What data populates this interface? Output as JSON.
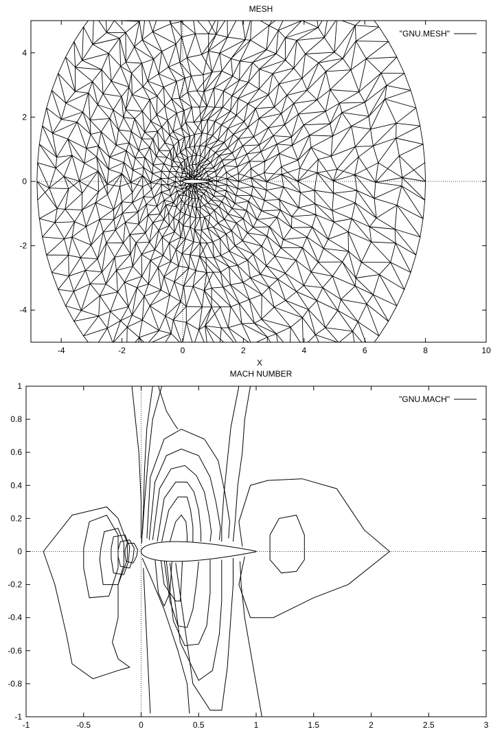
{
  "chart_data": [
    {
      "type": "line",
      "title": "MESH",
      "xlabel": "X",
      "ylabel": "",
      "xlim": [
        -5,
        10
      ],
      "ylim": [
        -5,
        5
      ],
      "xticks": [
        -4,
        -2,
        0,
        2,
        4,
        6,
        8,
        10
      ],
      "yticks": [
        -4,
        -2,
        0,
        2,
        4
      ],
      "zero_axes": true,
      "grid": false,
      "legend_position": "top-right",
      "series": [
        {
          "name": "\"GNU.MESH\"",
          "kind": "triangular-mesh",
          "outer_boundary": {
            "center": [
              1.6,
              0
            ],
            "radius_x": 6.4,
            "radius_y": 7.4
          },
          "airfoil": {
            "leading_edge": [
              0,
              0
            ],
            "trailing_edge": [
              1,
              0
            ],
            "thickness": 0.12
          },
          "refinement_center": [
            0.3,
            0
          ]
        }
      ]
    },
    {
      "type": "line",
      "title": "MACH NUMBER",
      "xlabel": "",
      "ylabel": "",
      "xlim": [
        -1,
        3
      ],
      "ylim": [
        -1,
        1
      ],
      "xticks": [
        -1,
        -0.5,
        0,
        0.5,
        1,
        1.5,
        2,
        2.5,
        3
      ],
      "yticks": [
        -1,
        -0.8,
        -0.6,
        -0.4,
        -0.2,
        0,
        0.2,
        0.4,
        0.6,
        0.8,
        1
      ],
      "zero_axes": true,
      "grid": false,
      "legend_position": "top-right",
      "series": [
        {
          "name": "\"GNU.MACH\"",
          "kind": "contours",
          "airfoil": {
            "leading_edge": [
              0,
              0
            ],
            "trailing_edge": [
              1,
              0
            ],
            "thickness": 0.12
          },
          "contours": [
            [
              [
                -0.85,
                0
              ],
              [
                -0.6,
                0.22
              ],
              [
                -0.3,
                0.27
              ],
              [
                -0.2,
                0.2
              ],
              [
                -0.12,
                0.05
              ],
              [
                -0.12,
                -0.05
              ],
              [
                -0.2,
                -0.2
              ],
              [
                -0.2,
                -0.4
              ],
              [
                -0.25,
                -0.55
              ],
              [
                -0.2,
                -0.65
              ],
              [
                -0.1,
                -0.7
              ],
              [
                -0.2,
                -0.72
              ],
              [
                -0.42,
                -0.77
              ],
              [
                -0.6,
                -0.68
              ],
              [
                -0.65,
                -0.5
              ],
              [
                -0.75,
                -0.2
              ],
              [
                -0.85,
                0
              ]
            ],
            [
              [
                -0.5,
                0.02
              ],
              [
                -0.45,
                0.18
              ],
              [
                -0.3,
                0.22
              ],
              [
                -0.2,
                0.1
              ],
              [
                -0.2,
                -0.1
              ],
              [
                -0.28,
                -0.27
              ],
              [
                -0.45,
                -0.28
              ],
              [
                -0.5,
                -0.1
              ],
              [
                -0.5,
                0.02
              ]
            ],
            [
              [
                -0.35,
                0.02
              ],
              [
                -0.32,
                0.12
              ],
              [
                -0.2,
                0.14
              ],
              [
                -0.15,
                0.05
              ],
              [
                -0.15,
                -0.08
              ],
              [
                -0.2,
                -0.2
              ],
              [
                -0.33,
                -0.2
              ],
              [
                -0.36,
                -0.05
              ],
              [
                -0.35,
                0.02
              ]
            ],
            [
              [
                -0.26,
                0.02
              ],
              [
                -0.24,
                0.09
              ],
              [
                -0.14,
                0.1
              ],
              [
                -0.1,
                0.03
              ],
              [
                -0.11,
                -0.06
              ],
              [
                -0.15,
                -0.14
              ],
              [
                -0.24,
                -0.13
              ],
              [
                -0.26,
                -0.04
              ],
              [
                -0.26,
                0.02
              ]
            ],
            [
              [
                -0.2,
                0.01
              ],
              [
                -0.18,
                0.06
              ],
              [
                -0.1,
                0.07
              ],
              [
                -0.06,
                0.02
              ],
              [
                -0.07,
                -0.04
              ],
              [
                -0.1,
                -0.1
              ],
              [
                -0.18,
                -0.09
              ],
              [
                -0.2,
                -0.03
              ],
              [
                -0.2,
                0.01
              ]
            ],
            [
              [
                -0.14,
                0.01
              ],
              [
                -0.12,
                0.05
              ],
              [
                -0.06,
                0.05
              ],
              [
                -0.03,
                0.01
              ],
              [
                -0.04,
                -0.03
              ],
              [
                -0.07,
                -0.07
              ],
              [
                -0.13,
                -0.06
              ],
              [
                -0.14,
                -0.02
              ],
              [
                -0.14,
                0.01
              ]
            ],
            [
              [
                0.1,
                1
              ],
              [
                0.05,
                0.75
              ],
              [
                0.03,
                0.5
              ],
              [
                0.02,
                0.25
              ],
              [
                0.005,
                0.05
              ]
            ],
            [
              [
                -0.08,
                1
              ],
              [
                -0.02,
                0.6
              ],
              [
                0.0,
                0.3
              ],
              [
                0.0,
                0.08
              ]
            ],
            [
              [
                0.18,
                1
              ],
              [
                0.1,
                0.8
              ],
              [
                0.06,
                0.55
              ],
              [
                0.03,
                0.3
              ],
              [
                0.01,
                0.1
              ]
            ],
            [
              [
                0.42,
                -0.98
              ],
              [
                0.4,
                -0.8
              ],
              [
                0.32,
                -0.6
              ],
              [
                0.2,
                -0.35
              ],
              [
                0.08,
                -0.15
              ],
              [
                0.01,
                -0.04
              ]
            ],
            [
              [
                0.08,
                -0.98
              ],
              [
                0.06,
                -0.7
              ],
              [
                0.04,
                -0.4
              ],
              [
                0.02,
                -0.1
              ]
            ],
            [
              [
                0.05,
                0.08
              ],
              [
                0.08,
                0.45
              ],
              [
                0.2,
                0.68
              ],
              [
                0.35,
                0.74
              ],
              [
                0.55,
                0.68
              ],
              [
                0.67,
                0.55
              ],
              [
                0.73,
                0.35
              ],
              [
                0.77,
                0.18
              ],
              [
                0.76,
                0.08
              ]
            ],
            [
              [
                0.07,
                0.07
              ],
              [
                0.12,
                0.42
              ],
              [
                0.22,
                0.58
              ],
              [
                0.35,
                0.62
              ],
              [
                0.5,
                0.58
              ],
              [
                0.6,
                0.45
              ],
              [
                0.65,
                0.3
              ],
              [
                0.69,
                0.14
              ],
              [
                0.68,
                0.07
              ]
            ],
            [
              [
                0.1,
                0.07
              ],
              [
                0.16,
                0.38
              ],
              [
                0.26,
                0.5
              ],
              [
                0.38,
                0.52
              ],
              [
                0.48,
                0.46
              ],
              [
                0.55,
                0.36
              ],
              [
                0.59,
                0.22
              ],
              [
                0.61,
                0.12
              ],
              [
                0.6,
                0.06
              ]
            ],
            [
              [
                0.14,
                0.06
              ],
              [
                0.2,
                0.32
              ],
              [
                0.3,
                0.42
              ],
              [
                0.4,
                0.42
              ],
              [
                0.46,
                0.36
              ],
              [
                0.5,
                0.25
              ],
              [
                0.52,
                0.12
              ],
              [
                0.52,
                0.06
              ]
            ],
            [
              [
                0.18,
                0.06
              ],
              [
                0.24,
                0.25
              ],
              [
                0.32,
                0.33
              ],
              [
                0.4,
                0.33
              ],
              [
                0.43,
                0.25
              ],
              [
                0.45,
                0.15
              ],
              [
                0.45,
                0.05
              ]
            ],
            [
              [
                0.25,
                0.06
              ],
              [
                0.3,
                0.18
              ],
              [
                0.35,
                0.22
              ],
              [
                0.39,
                0.18
              ],
              [
                0.4,
                0.1
              ],
              [
                0.4,
                0.05
              ]
            ],
            [
              [
                0.85,
                1
              ],
              [
                0.78,
                0.75
              ],
              [
                0.75,
                0.55
              ],
              [
                0.72,
                0.35
              ],
              [
                0.7,
                0.15
              ],
              [
                0.7,
                0.06
              ]
            ],
            [
              [
                0.15,
                1
              ],
              [
                0.22,
                0.85
              ],
              [
                0.28,
                0.78
              ],
              [
                0.32,
                0.74
              ]
            ],
            [
              [
                0.12,
                -0.04
              ],
              [
                0.15,
                -0.25
              ],
              [
                0.2,
                -0.33
              ],
              [
                0.25,
                -0.25
              ],
              [
                0.27,
                -0.04
              ]
            ],
            [
              [
                0.17,
                -0.04
              ],
              [
                0.2,
                -0.2
              ],
              [
                0.3,
                -0.3
              ],
              [
                0.34,
                -0.3
              ],
              [
                0.35,
                -0.18
              ],
              [
                0.36,
                -0.04
              ]
            ],
            [
              [
                0.2,
                -0.05
              ],
              [
                0.25,
                -0.3
              ],
              [
                0.32,
                -0.45
              ],
              [
                0.4,
                -0.46
              ],
              [
                0.45,
                -0.35
              ],
              [
                0.48,
                -0.2
              ],
              [
                0.5,
                -0.06
              ]
            ],
            [
              [
                0.22,
                -0.06
              ],
              [
                0.28,
                -0.42
              ],
              [
                0.38,
                -0.57
              ],
              [
                0.5,
                -0.56
              ],
              [
                0.57,
                -0.45
              ],
              [
                0.6,
                -0.25
              ],
              [
                0.6,
                -0.05
              ]
            ],
            [
              [
                0.25,
                -0.07
              ],
              [
                0.34,
                -0.55
              ],
              [
                0.5,
                -0.78
              ],
              [
                0.62,
                -0.72
              ],
              [
                0.68,
                -0.5
              ],
              [
                0.7,
                -0.3
              ],
              [
                0.7,
                -0.05
              ]
            ],
            [
              [
                0.3,
                -0.07
              ],
              [
                0.45,
                -0.8
              ],
              [
                0.6,
                -0.96
              ],
              [
                0.7,
                -0.96
              ],
              [
                0.75,
                -0.7
              ],
              [
                0.78,
                -0.4
              ],
              [
                0.8,
                -0.2
              ],
              [
                0.8,
                -0.04
              ]
            ],
            [
              [
                0.88,
                0.03
              ],
              [
                0.85,
                0.18
              ],
              [
                0.95,
                0.4
              ],
              [
                1.1,
                0.43
              ],
              [
                1.4,
                0.44
              ],
              [
                1.7,
                0.38
              ],
              [
                1.94,
                0.13
              ],
              [
                2.16,
                0
              ],
              [
                1.8,
                -0.2
              ],
              [
                1.5,
                -0.28
              ],
              [
                1.15,
                -0.4
              ],
              [
                0.95,
                -0.4
              ],
              [
                0.85,
                -0.2
              ],
              [
                0.9,
                -0.03
              ]
            ],
            [
              [
                1.12,
                0.1
              ],
              [
                1.2,
                0.2
              ],
              [
                1.35,
                0.22
              ],
              [
                1.42,
                0.1
              ],
              [
                1.42,
                -0.05
              ],
              [
                1.35,
                -0.12
              ],
              [
                1.22,
                -0.13
              ],
              [
                1.12,
                -0.05
              ],
              [
                1.12,
                0.1
              ]
            ],
            [
              [
                0.95,
                1
              ],
              [
                0.9,
                0.8
              ],
              [
                0.88,
                0.6
              ],
              [
                0.84,
                0.4
              ],
              [
                0.82,
                0.2
              ],
              [
                0.8,
                0.06
              ]
            ],
            [
              [
                1.05,
                -1
              ],
              [
                1.0,
                -0.8
              ],
              [
                0.95,
                -0.6
              ],
              [
                0.9,
                -0.4
              ],
              [
                0.87,
                -0.2
              ],
              [
                0.86,
                -0.06
              ]
            ]
          ]
        }
      ]
    }
  ]
}
